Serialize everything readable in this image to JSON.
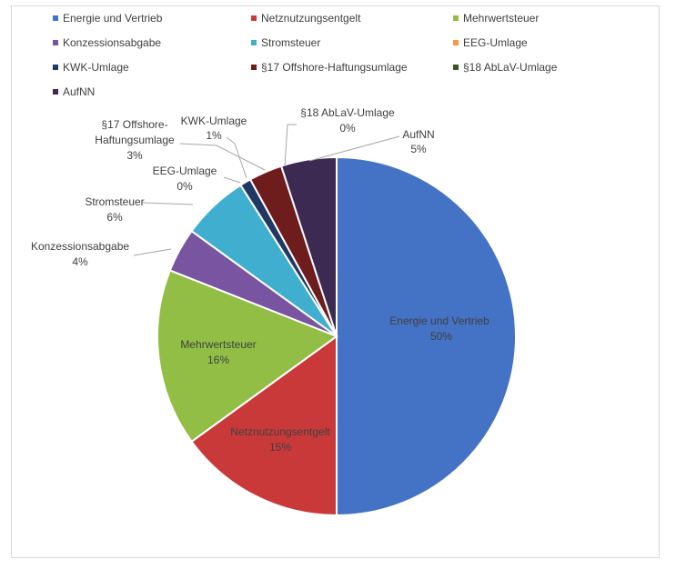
{
  "chart_data": {
    "type": "pie",
    "title": "",
    "legend_position": "top",
    "slices": [
      {
        "name": "Energie und Vertrieb",
        "value": 50,
        "label": "50%",
        "color": "#4472c4"
      },
      {
        "name": "Netznutzungsentgelt",
        "value": 15,
        "label": "15%",
        "color": "#c9393a"
      },
      {
        "name": "Mehrwertsteuer",
        "value": 16,
        "label": "16%",
        "color": "#92be46"
      },
      {
        "name": "Konzessionsabgabe",
        "value": 4,
        "label": "4%",
        "color": "#7954a1"
      },
      {
        "name": "Stromsteuer",
        "value": 6,
        "label": "6%",
        "color": "#40aece"
      },
      {
        "name": "EEG-Umlage",
        "value": 0,
        "label": "0%",
        "color": "#f79646"
      },
      {
        "name": "KWK-Umlage",
        "value": 1,
        "label": "1%",
        "color": "#203864"
      },
      {
        "name": "§17 Offshore-Haftungsumlage",
        "value": 3,
        "label": "3%",
        "color": "#6e1c1c"
      },
      {
        "name": "§18 AbLaV-Umlage",
        "value": 0,
        "label": "0%",
        "color": "#375623"
      },
      {
        "name": "AufNN",
        "value": 5,
        "label": "5%",
        "color": "#3d2a52"
      }
    ]
  },
  "label_lines": {
    "offshore": [
      "§17 Offshore-",
      "Haftungsumlage"
    ]
  }
}
